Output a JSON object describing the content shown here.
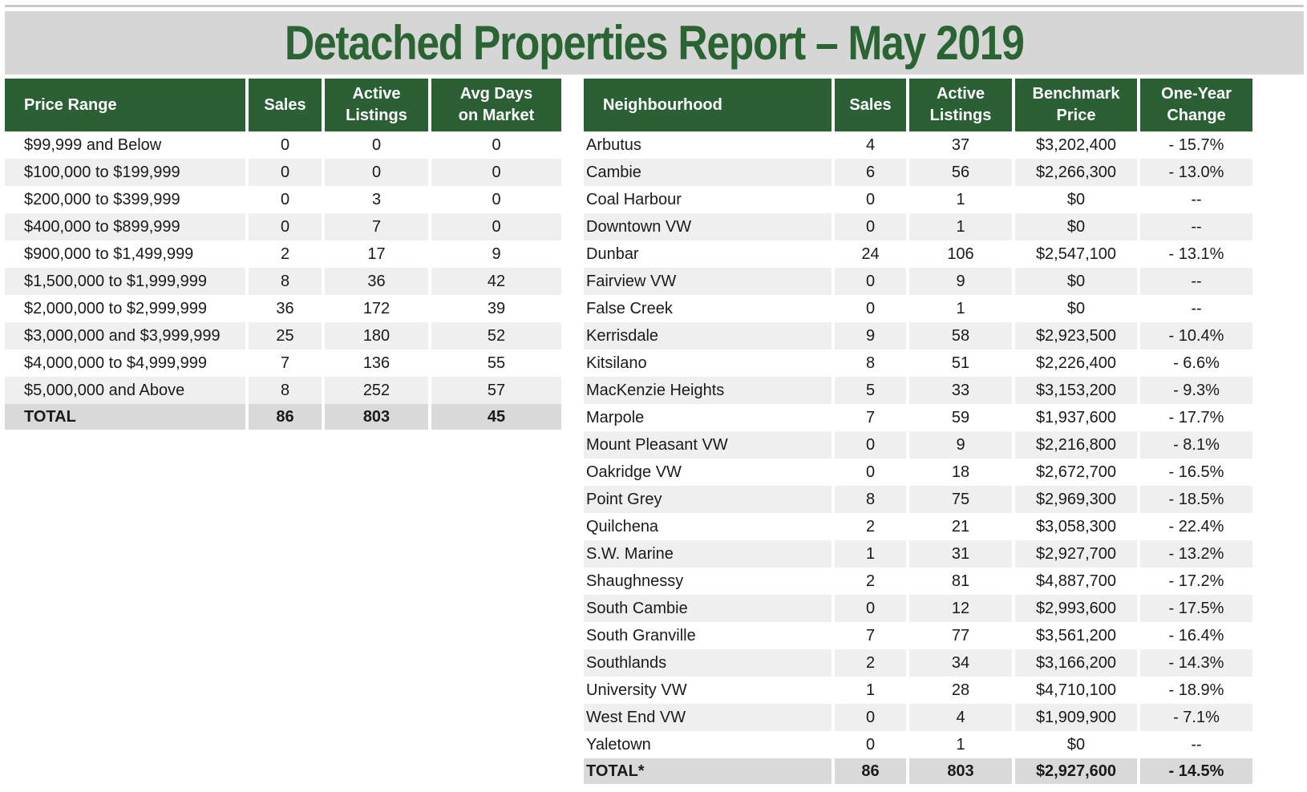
{
  "title": "Detached Properties Report – May 2019",
  "price_table": {
    "headers": [
      "Price Range",
      "Sales",
      "Active\nListings",
      "Avg Days\non Market"
    ],
    "rows": [
      [
        "$99,999 and Below",
        "0",
        "0",
        "0"
      ],
      [
        "$100,000 to $199,999",
        "0",
        "0",
        "0"
      ],
      [
        "$200,000 to $399,999",
        "0",
        "3",
        "0"
      ],
      [
        "$400,000 to $899,999",
        "0",
        "7",
        "0"
      ],
      [
        "$900,000 to $1,499,999",
        "2",
        "17",
        "9"
      ],
      [
        "$1,500,000 to $1,999,999",
        "8",
        "36",
        "42"
      ],
      [
        "$2,000,000 to $2,999,999",
        "36",
        "172",
        "39"
      ],
      [
        "$3,000,000 and $3,999,999",
        "25",
        "180",
        "52"
      ],
      [
        "$4,000,000 to $4,999,999",
        "7",
        "136",
        "55"
      ],
      [
        "$5,000,000 and Above",
        "8",
        "252",
        "57"
      ]
    ],
    "total": [
      "TOTAL",
      "86",
      "803",
      "45"
    ]
  },
  "neighbourhood_table": {
    "headers": [
      "Neighbourhood",
      "Sales",
      "Active\nListings",
      "Benchmark\nPrice",
      "One-Year\nChange"
    ],
    "rows": [
      [
        "Arbutus",
        "4",
        "37",
        "$3,202,400",
        "- 15.7%"
      ],
      [
        "Cambie",
        "6",
        "56",
        "$2,266,300",
        "- 13.0%"
      ],
      [
        "Coal Harbour",
        "0",
        "1",
        "$0",
        "--"
      ],
      [
        "Downtown VW",
        "0",
        "1",
        "$0",
        "--"
      ],
      [
        "Dunbar",
        "24",
        "106",
        "$2,547,100",
        "- 13.1%"
      ],
      [
        "Fairview VW",
        "0",
        "9",
        "$0",
        "--"
      ],
      [
        "False Creek",
        "0",
        "1",
        "$0",
        "--"
      ],
      [
        "Kerrisdale",
        "9",
        "58",
        "$2,923,500",
        "- 10.4%"
      ],
      [
        "Kitsilano",
        "8",
        "51",
        "$2,226,400",
        "- 6.6%"
      ],
      [
        "MacKenzie Heights",
        "5",
        "33",
        "$3,153,200",
        "- 9.3%"
      ],
      [
        "Marpole",
        "7",
        "59",
        "$1,937,600",
        "- 17.7%"
      ],
      [
        "Mount Pleasant VW",
        "0",
        "9",
        "$2,216,800",
        "- 8.1%"
      ],
      [
        "Oakridge VW",
        "0",
        "18",
        "$2,672,700",
        "- 16.5%"
      ],
      [
        "Point Grey",
        "8",
        "75",
        "$2,969,300",
        "- 18.5%"
      ],
      [
        "Quilchena",
        "2",
        "21",
        "$3,058,300",
        "- 22.4%"
      ],
      [
        "S.W. Marine",
        "1",
        "31",
        "$2,927,700",
        "- 13.2%"
      ],
      [
        "Shaughnessy",
        "2",
        "81",
        "$4,887,700",
        "- 17.2%"
      ],
      [
        "South Cambie",
        "0",
        "12",
        "$2,993,600",
        "- 17.5%"
      ],
      [
        "South Granville",
        "7",
        "77",
        "$3,561,200",
        "- 16.4%"
      ],
      [
        "Southlands",
        "2",
        "34",
        "$3,166,200",
        "- 14.3%"
      ],
      [
        "University VW",
        "1",
        "28",
        "$4,710,100",
        "- 18.9%"
      ],
      [
        "West End VW",
        "0",
        "4",
        "$1,909,900",
        "- 7.1%"
      ],
      [
        "Yaletown",
        "0",
        "1",
        "$0",
        "--"
      ]
    ],
    "total": [
      "TOTAL*",
      "86",
      "803",
      "$2,927,600",
      "- 14.5%"
    ]
  },
  "colors": {
    "header_green": "#2b6035",
    "title_green": "#2a6433",
    "title_band": "#d6d6d6",
    "stripe": "#efefef",
    "total_row": "#d9d9d9"
  }
}
